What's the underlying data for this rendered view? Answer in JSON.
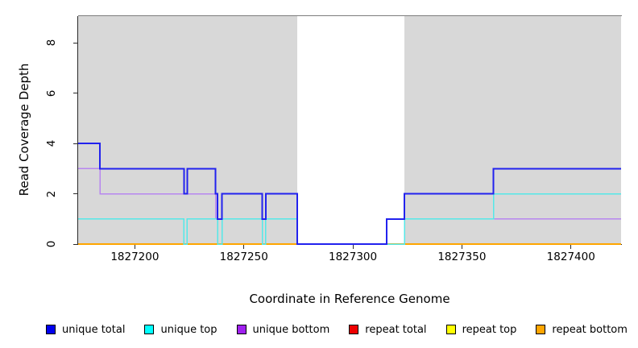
{
  "figure": {
    "y_axis_label": "Read Coverage Depth",
    "x_axis_label": "Coordinate in Reference Genome"
  },
  "colors": {
    "plot_background": "#d8d8d8",
    "gap_band": "#ffffff",
    "top_border": "#7d7d7d",
    "axis_line": "#2a2a2a",
    "unique_total": "#2222ee",
    "unique_top": "#55e8e8",
    "unique_bottom": "#b786ef",
    "repeat_total": "#e60000",
    "repeat_top": "#ffff00",
    "repeat_bottom": "#ffa500"
  },
  "legend": {
    "items": [
      {
        "label": "unique total",
        "color": "#0000ee"
      },
      {
        "label": "unique top",
        "color": "#00ffff"
      },
      {
        "label": "unique bottom",
        "color": "#a020f0"
      },
      {
        "label": "repeat total",
        "color": "#ee0000"
      },
      {
        "label": "repeat top",
        "color": "#ffff00"
      },
      {
        "label": "repeat bottom",
        "color": "#ffa500"
      }
    ]
  },
  "chart_data": {
    "type": "line",
    "subtype": "step-coverage",
    "title": "",
    "xlabel": "Coordinate in Reference Genome",
    "ylabel": "Read Coverage Depth",
    "xlim": [
      1827174,
      1827423
    ],
    "ylim": [
      0,
      9.056
    ],
    "xticks": [
      1827200,
      1827250,
      1827300,
      1827350,
      1827400
    ],
    "yticks": [
      0,
      2,
      4,
      6,
      8
    ],
    "grid": false,
    "legend_position": "bottom",
    "background_shading": {
      "shaded_color": "#d8d8d8",
      "unshaded_region": [
        1827274.5,
        1827323.7
      ]
    },
    "series": [
      {
        "name": "repeat total",
        "color": "#e60000",
        "width": 1.5,
        "steps": [
          [
            1827174,
            0
          ]
        ],
        "end": 1827423
      },
      {
        "name": "repeat top",
        "color": "#ffff00",
        "width": 1.5,
        "steps": [
          [
            1827174,
            0
          ]
        ],
        "end": 1827423
      },
      {
        "name": "repeat bottom",
        "color": "#ffa500",
        "width": 2,
        "steps": [
          [
            1827174,
            0
          ]
        ],
        "end": 1827423
      },
      {
        "name": "unique bottom",
        "color": "#b786ef",
        "width": 1.5,
        "steps": [
          [
            1827174,
            3
          ],
          [
            1827184,
            2
          ],
          [
            1827237,
            1
          ],
          [
            1827274.5,
            0
          ],
          [
            1827315.5,
            1
          ]
        ],
        "end": 1827423
      },
      {
        "name": "unique top",
        "color": "#55e8e8",
        "width": 1.5,
        "steps": [
          [
            1827174,
            1
          ],
          [
            1827222.5,
            0
          ],
          [
            1827224,
            1
          ],
          [
            1827238,
            0
          ],
          [
            1827240,
            1
          ],
          [
            1827258.5,
            0
          ],
          [
            1827260,
            1
          ],
          [
            1827274.5,
            0
          ],
          [
            1827323.7,
            1
          ],
          [
            1827364.5,
            2
          ]
        ],
        "end": 1827423
      },
      {
        "name": "unique total",
        "color": "#2222ee",
        "width": 2,
        "steps": [
          [
            1827174,
            4
          ],
          [
            1827184,
            3
          ],
          [
            1827222.5,
            2
          ],
          [
            1827224,
            3
          ],
          [
            1827237,
            2
          ],
          [
            1827238,
            1
          ],
          [
            1827240,
            2
          ],
          [
            1827258.5,
            1
          ],
          [
            1827260,
            2
          ],
          [
            1827274.5,
            0
          ],
          [
            1827315.5,
            1
          ],
          [
            1827323.7,
            2
          ],
          [
            1827364.5,
            3
          ]
        ],
        "end": 1827423
      }
    ]
  }
}
